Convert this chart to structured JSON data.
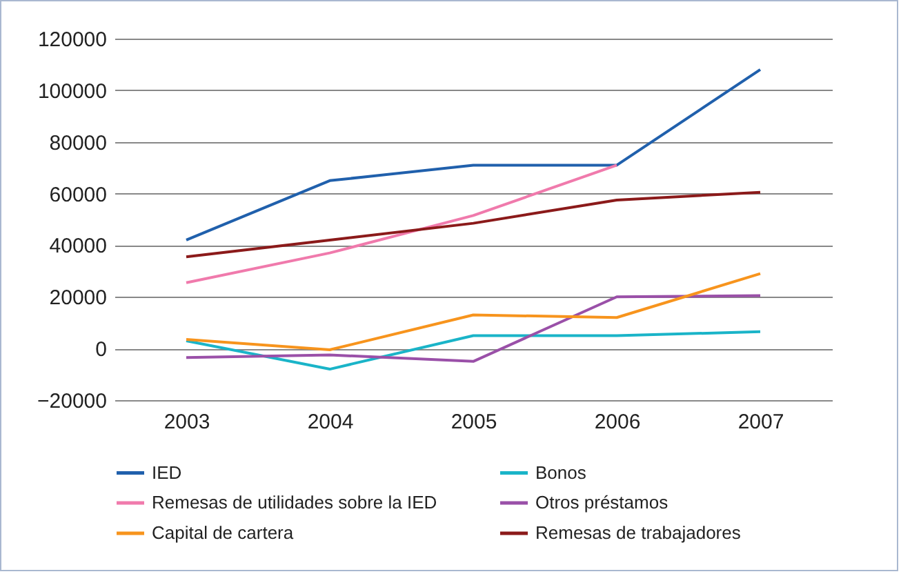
{
  "chart_data": {
    "type": "line",
    "categories": [
      "2003",
      "2004",
      "2005",
      "2006",
      "2007"
    ],
    "series": [
      {
        "name": "IED",
        "color": "#2060ac",
        "values": [
          42000,
          65000,
          71000,
          71000,
          108000
        ]
      },
      {
        "name": "Bonos",
        "color": "#1ab4c8",
        "values": [
          3000,
          -8000,
          5000,
          5000,
          6500
        ]
      },
      {
        "name": "Remesas de utilidades sobre la IED",
        "color": "#f07aac",
        "values": [
          25500,
          37000,
          51500,
          71000,
          null
        ]
      },
      {
        "name": "Otros préstamos",
        "color": "#9a50a8",
        "values": [
          -3500,
          -2500,
          -5000,
          20000,
          20500
        ]
      },
      {
        "name": "Capital de cartera",
        "color": "#f7941d",
        "values": [
          3500,
          -500,
          13000,
          12000,
          29000
        ]
      },
      {
        "name": "Remesas de trabajadores",
        "color": "#8b1a1a",
        "values": [
          35500,
          42000,
          48500,
          57500,
          60500
        ]
      }
    ],
    "ylim": [
      -20000,
      120000
    ],
    "yticks": [
      -20000,
      0,
      20000,
      40000,
      60000,
      80000,
      100000,
      120000
    ],
    "grid": "y",
    "legend": "bottom",
    "marker": "none",
    "line_style": "solid"
  }
}
